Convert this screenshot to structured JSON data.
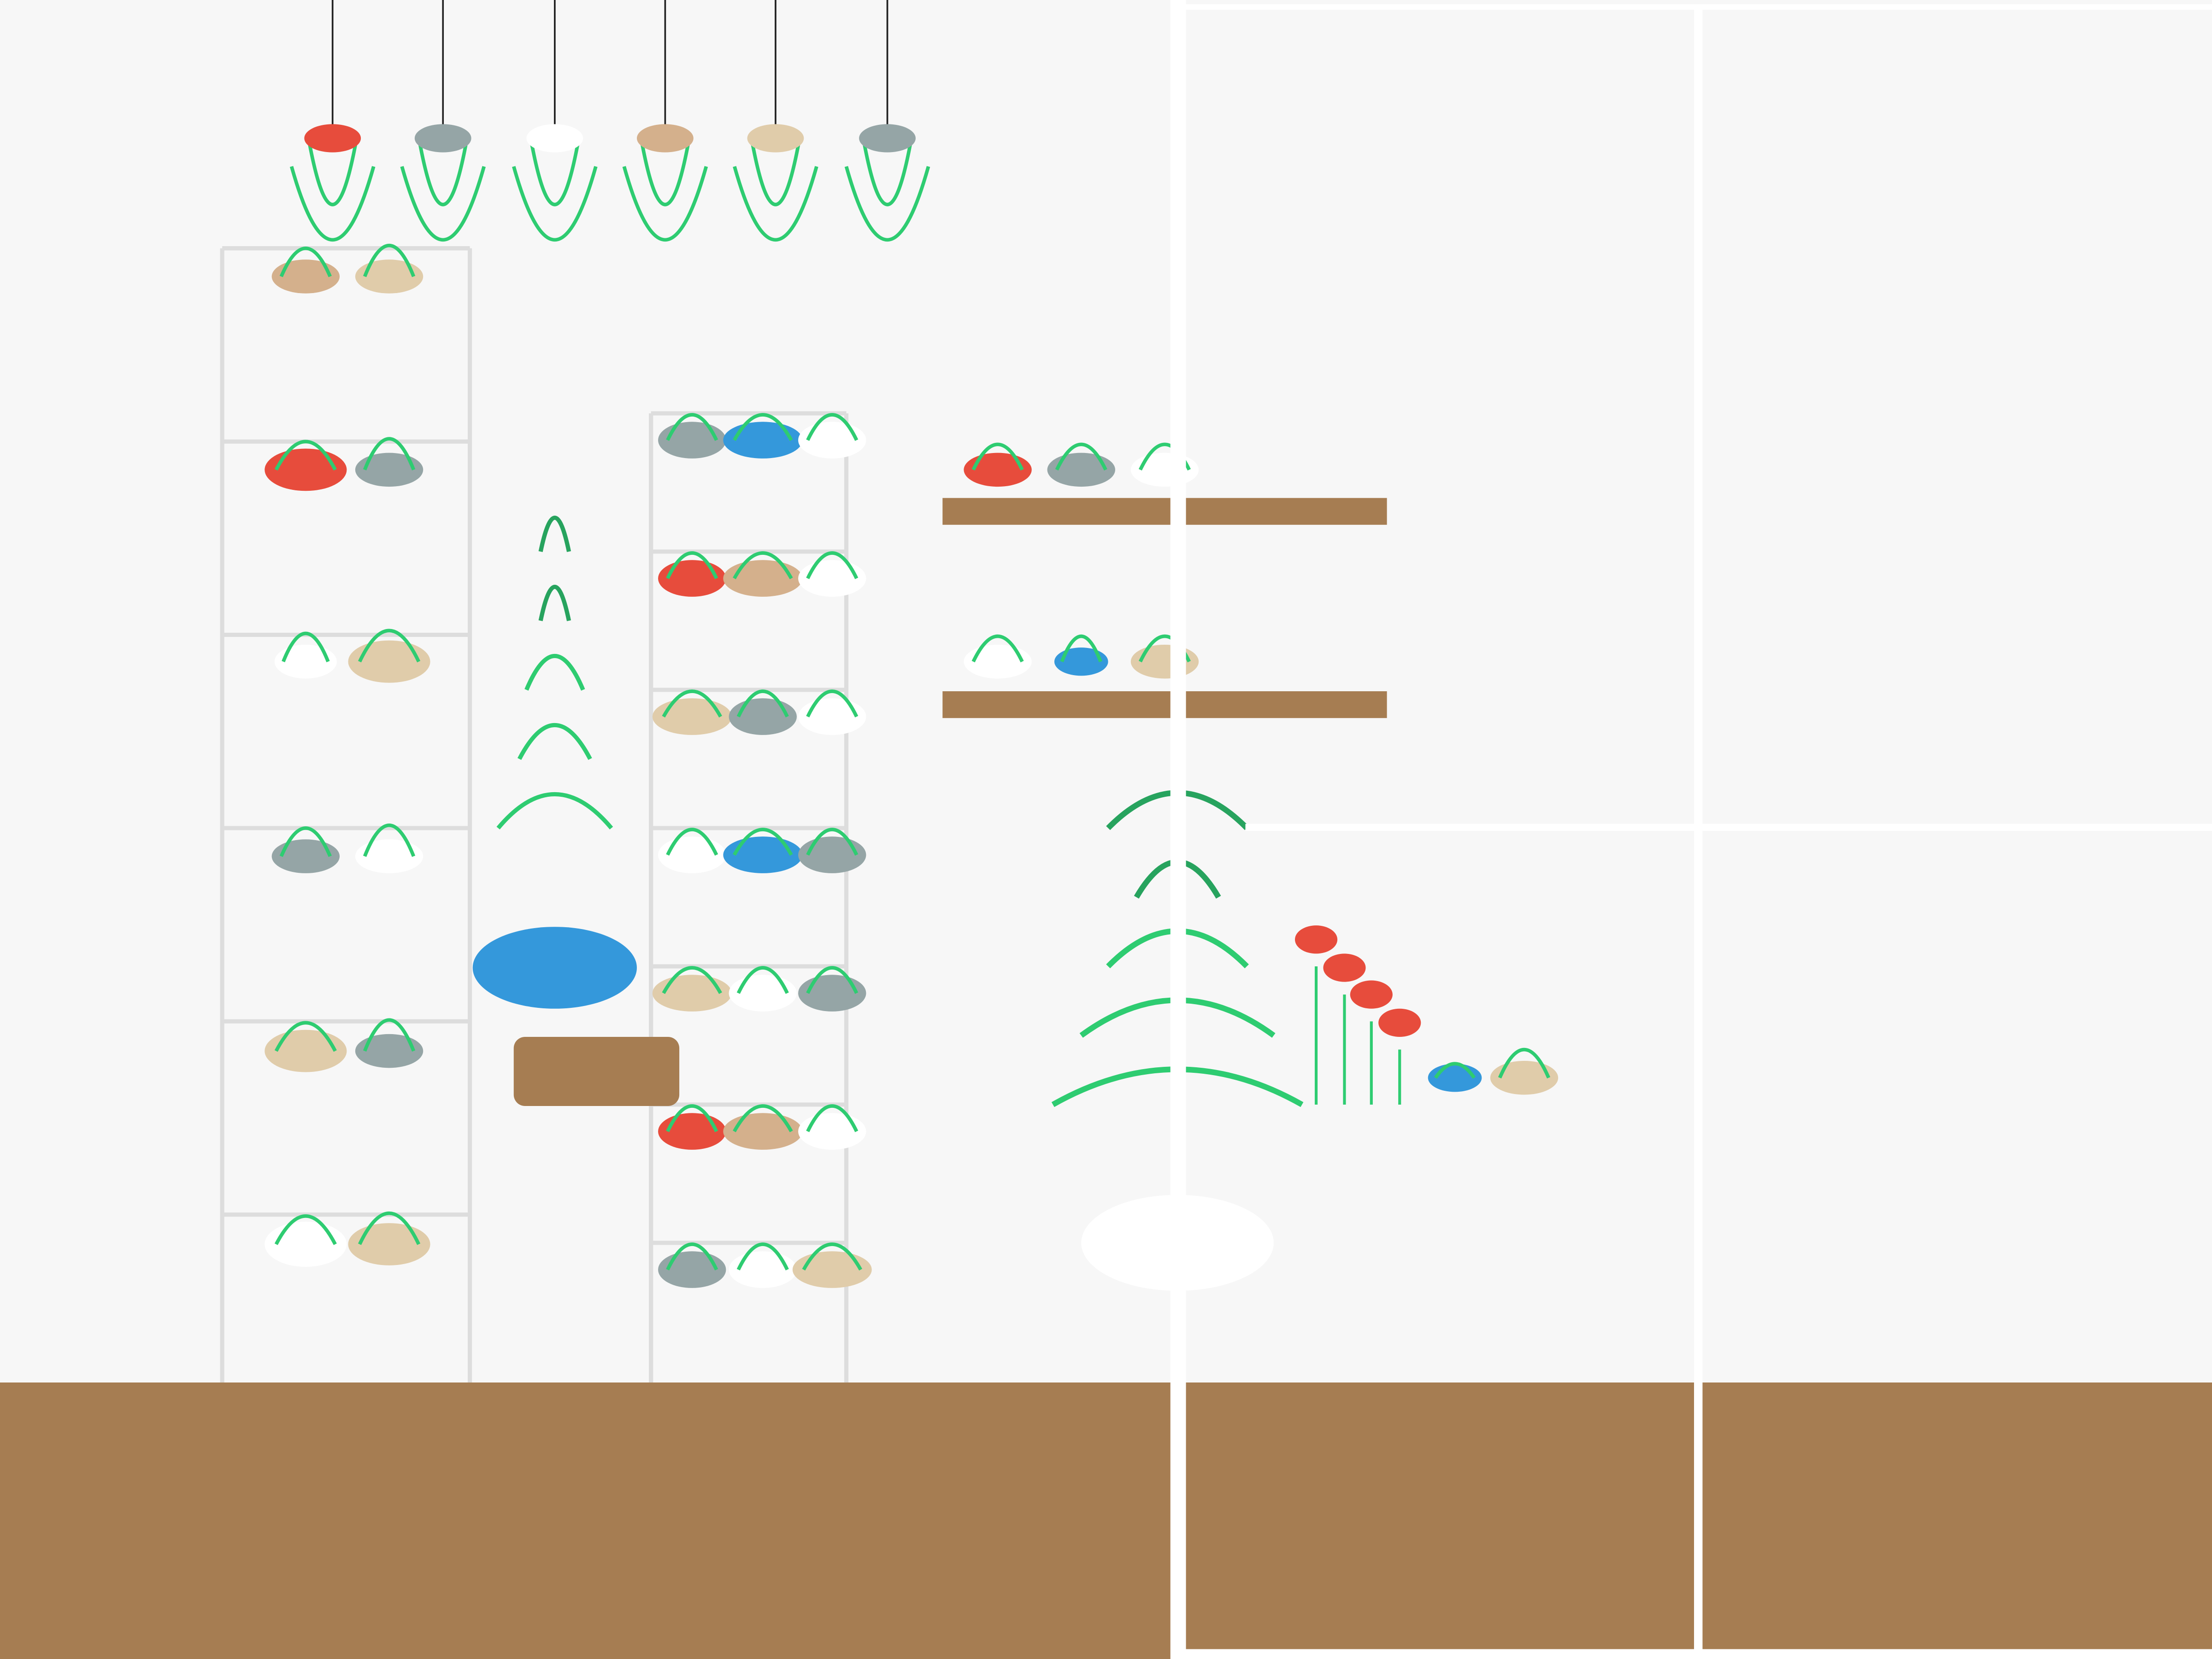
{
  "scene": {
    "description_visible_text": "",
    "colors": {
      "wall": "#f7f7f7",
      "floor": "#a67d52",
      "shelf_wood": "#a67d52",
      "rack_frame": "#dddddd",
      "window_frame": "#ffffff",
      "stem_green": "#2ecc71",
      "stem_dark_green": "#27a35e",
      "cord": "#222222"
    },
    "palette": {
      "red": "#e74c3c",
      "grey": "#95a5a6",
      "white": "#ffffff",
      "tan": "#d4b08c",
      "beige": "#e0ccaa",
      "blue": "#3498db"
    },
    "pendant_caps": [
      "red",
      "grey",
      "white",
      "tan",
      "beige",
      "grey"
    ],
    "rack_left_items": [
      [
        "tan",
        "beige"
      ],
      [
        "red",
        "grey"
      ],
      [
        "white",
        "beige"
      ],
      [
        "grey",
        "white"
      ],
      [
        "beige",
        "grey"
      ],
      [
        "white",
        "beige"
      ]
    ],
    "rack_right_items": [
      [
        "grey",
        "blue",
        "white"
      ],
      [
        "red",
        "tan",
        "white"
      ],
      [
        "beige",
        "grey",
        "white"
      ],
      [
        "white",
        "blue",
        "grey"
      ],
      [
        "beige",
        "white",
        "grey"
      ],
      [
        "red",
        "tan",
        "white"
      ],
      [
        "grey",
        "white",
        "beige"
      ]
    ],
    "wall_shelf_items": [
      [
        "red",
        "grey",
        "white"
      ],
      [
        "white",
        "blue",
        "beige"
      ]
    ],
    "dot_row": [
      "red",
      "red",
      "red",
      "red"
    ],
    "floor_items": [
      "blue",
      "beige"
    ]
  }
}
